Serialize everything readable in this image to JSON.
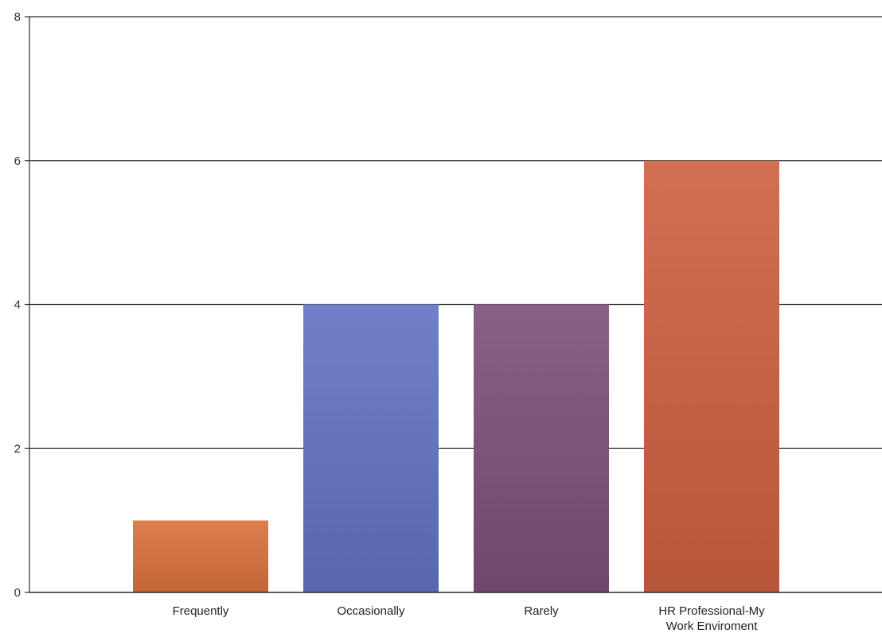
{
  "chart_data": {
    "type": "bar",
    "categories": [
      "Frequently",
      "Occasionally",
      "Rarely",
      "HR Professional-My\nWork Enviroment"
    ],
    "values": [
      1,
      4,
      4,
      6
    ],
    "colors": [
      "#d9703a",
      "#6172c2",
      "#7b4f78",
      "#cc5f3e"
    ],
    "ylim": [
      0,
      8
    ],
    "yticks": [
      0,
      2,
      4,
      6,
      8
    ],
    "grid": true,
    "legend": "none"
  }
}
